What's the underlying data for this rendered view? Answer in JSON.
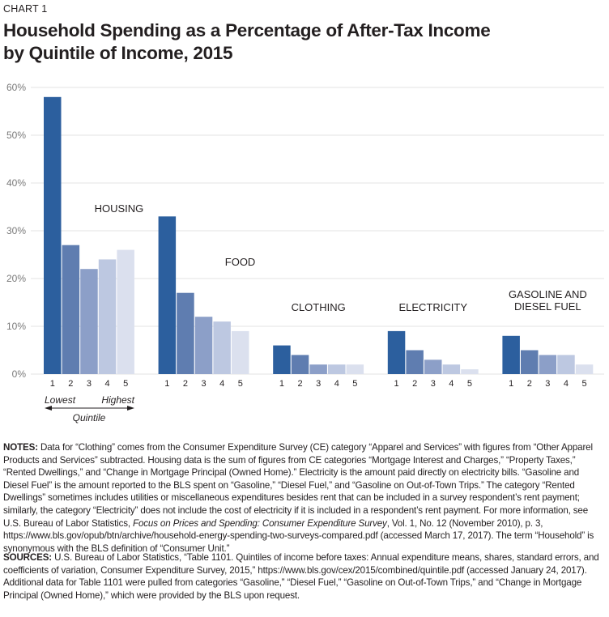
{
  "header": {
    "kicker": "CHART 1",
    "title_line1": "Household Spending as a Percentage of After-Tax Income",
    "title_line2": "by Quintile of Income, 2015"
  },
  "chart_data": {
    "type": "bar",
    "title": "Household Spending as a Percentage of After-Tax Income by Quintile of Income, 2015",
    "xlabel": "Quintile",
    "ylabel": "",
    "ylim": [
      0,
      60
    ],
    "yticks": [
      "0%",
      "10%",
      "20%",
      "30%",
      "40%",
      "50%",
      "60%"
    ],
    "ytick_values": [
      0,
      10,
      20,
      30,
      40,
      50,
      60
    ],
    "grid": true,
    "categories": [
      "1",
      "2",
      "3",
      "4",
      "5"
    ],
    "quintile_axis": {
      "low_label": "Lowest",
      "high_label": "Highest",
      "label": "Quintile"
    },
    "groups": [
      {
        "name": "HOUSING",
        "label_lines": [
          "HOUSING"
        ],
        "values": [
          58,
          27,
          22,
          24,
          26
        ]
      },
      {
        "name": "FOOD",
        "label_lines": [
          "FOOD"
        ],
        "values": [
          33,
          17,
          12,
          11,
          9
        ]
      },
      {
        "name": "CLOTHING",
        "label_lines": [
          "CLOTHING"
        ],
        "values": [
          6,
          4,
          2,
          2,
          2
        ]
      },
      {
        "name": "ELECTRICITY",
        "label_lines": [
          "ELECTRICITY"
        ],
        "values": [
          9,
          5,
          3,
          2,
          1
        ]
      },
      {
        "name": "GASOLINE AND DIESEL FUEL",
        "label_lines": [
          "GASOLINE AND",
          "DIESEL FUEL"
        ],
        "values": [
          8,
          5,
          4,
          4,
          2
        ]
      }
    ],
    "quintile_colors": [
      "#2c5f9e",
      "#5f7db0",
      "#8c9fc8",
      "#bdc8e1",
      "#dbe0ee"
    ],
    "grid_color": "#e3e3e3"
  },
  "notes": {
    "label": "NOTES:",
    "text_before_italic": " Data for “Clothing” comes from the Consumer Expenditure Survey (CE) category “Apparel and Services” with figures from “Other Apparel Products and Services” subtracted. Housing data is the sum of figures from CE categories “Mortgage Interest and Charges,” “Property Taxes,” “Rented Dwellings,” and “Change in Mortgage Principal (Owned Home).” Electricity is the amount paid directly on electricity bills. “Gasoline and Diesel Fuel” is the amount reported to the BLS spent on “Gasoline,” “Diesel Fuel,” and “Gasoline on Out-of-Town Trips.” The category “Rented Dwellings” sometimes includes utilities or miscellaneous expenditures besides rent that can be included in a survey respondent’s rent payment; similarly, the category “Electricity” does not include the cost of electricity if it is included in a respondent’s rent payment. For more information, see U.S. Bureau of Labor Statistics, ",
    "italic": "Focus on Prices and Spending: Consumer Expenditure Survey",
    "text_after_italic": ", Vol. 1, No. 12 (November 2010), p. 3, https://www.bls.gov/opub/btn/archive/household-energy-spending-two-surveys-compared.pdf (accessed March 17, 2017). The term “Household” is synonymous with the BLS definition of “Consumer Unit.”"
  },
  "sources": {
    "label": "SOURCES:",
    "text": " U.S. Bureau of Labor Statistics, “Table 1101. Quintiles of income before taxes: Annual expenditure means, shares, standard errors, and coefficients of variation, Consumer Expenditure Survey, 2015,” https://www.bls.gov/cex/2015/combined/quintile.pdf (accessed January 24, 2017). Additional data for Table 1101 were pulled from categories “Gasoline,” “Diesel Fuel,” “Gasoline on Out-of-Town Trips,” and “Change in Mortgage Principal (Owned Home),” which were provided by the BLS upon request."
  }
}
